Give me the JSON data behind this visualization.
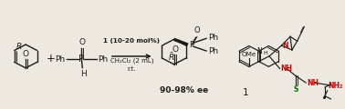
{
  "background_color": "#ede9e0",
  "fig_width": 3.78,
  "fig_height": 1.2,
  "dpi": 100,
  "colors": {
    "black": "#1c1c1c",
    "red": "#cc0000",
    "green": "#007700",
    "gray": "#444444"
  },
  "catalyst_line1": "1 (10-20 mol%)",
  "catalyst_line2": "CH₂Cl₂ (2 mL)",
  "catalyst_line3": "r.t.",
  "reaction_text": "90-98% ee"
}
